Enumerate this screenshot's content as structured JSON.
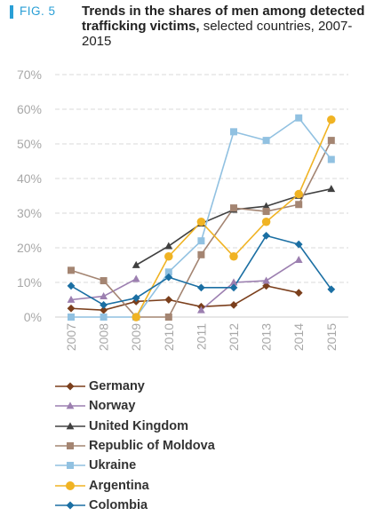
{
  "figure": {
    "label": "FIG. 5",
    "title_bold": "Trends in the shares of men among detected trafficking victims,",
    "title_normal": "selected countries, 2007-2015"
  },
  "chart_data": {
    "type": "line",
    "title": "Trends in the shares of men among detected trafficking victims, selected countries, 2007-2015",
    "x": [
      "2007",
      "2008",
      "2009",
      "2010",
      "2011",
      "2012",
      "2013",
      "2014",
      "2015"
    ],
    "ylim": [
      0,
      70
    ],
    "yticks": [
      0,
      10,
      20,
      30,
      40,
      50,
      60,
      70
    ],
    "ytick_labels": [
      "0%",
      "10%",
      "20%",
      "30%",
      "40%",
      "50%",
      "60%",
      "70%"
    ],
    "grid": true,
    "legend_position": "bottom",
    "series": [
      {
        "name": "Germany",
        "color": "#7b3f1c",
        "marker": "diamond",
        "values": [
          2.5,
          2.0,
          4.5,
          5.0,
          3.0,
          3.5,
          9.0,
          7.0,
          null
        ]
      },
      {
        "name": "Norway",
        "color": "#9c7fb0",
        "marker": "triangle",
        "values": [
          5.0,
          6.0,
          11.0,
          null,
          2.0,
          10.0,
          10.5,
          16.5,
          null
        ]
      },
      {
        "name": "United Kingdom",
        "color": "#404040",
        "marker": "triangle",
        "values": [
          null,
          null,
          15.0,
          20.5,
          27.0,
          31.0,
          32.0,
          35.0,
          37.0
        ]
      },
      {
        "name": "Republic of Moldova",
        "color": "#a48572",
        "marker": "square",
        "values": [
          13.5,
          10.5,
          0.0,
          0.0,
          18.0,
          31.5,
          30.5,
          32.5,
          51.0
        ]
      },
      {
        "name": "Ukraine",
        "color": "#91c1e1",
        "marker": "square",
        "values": [
          0.0,
          0.0,
          0.0,
          13.0,
          22.0,
          53.5,
          51.0,
          57.5,
          45.5
        ]
      },
      {
        "name": "Argentina",
        "color": "#f0b323",
        "marker": "circle",
        "values": [
          null,
          null,
          0.0,
          17.5,
          27.5,
          17.5,
          27.5,
          35.5,
          57.0
        ]
      },
      {
        "name": "Colombia",
        "color": "#1b6fa3",
        "marker": "diamond",
        "values": [
          9.0,
          3.5,
          5.5,
          11.5,
          8.5,
          8.5,
          23.5,
          21.0,
          8.0
        ]
      }
    ]
  }
}
